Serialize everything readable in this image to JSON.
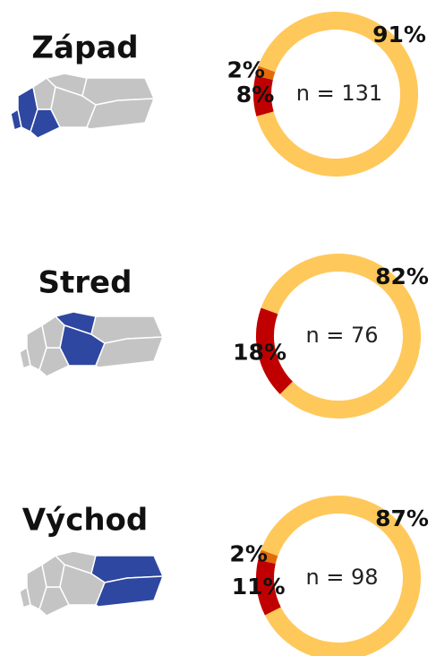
{
  "chart_data": [
    {
      "type": "pie",
      "title": "Západ",
      "center_label": "n = 131",
      "values": [
        91,
        8,
        2
      ],
      "value_labels": [
        "91%",
        "8%",
        "2%"
      ],
      "colors": [
        "#ffc85a",
        "#c00000",
        "#e36c0a"
      ]
    },
    {
      "type": "pie",
      "title": "Stred",
      "center_label": "n = 76",
      "values": [
        82,
        18
      ],
      "value_labels": [
        "82%",
        "18%"
      ],
      "colors": [
        "#ffc85a",
        "#c00000"
      ]
    },
    {
      "type": "pie",
      "title": "Východ",
      "center_label": "n = 98",
      "values": [
        87,
        11,
        2
      ],
      "value_labels": [
        "87%",
        "11%",
        "2%"
      ],
      "colors": [
        "#ffc85a",
        "#c00000",
        "#e36c0a"
      ]
    }
  ]
}
